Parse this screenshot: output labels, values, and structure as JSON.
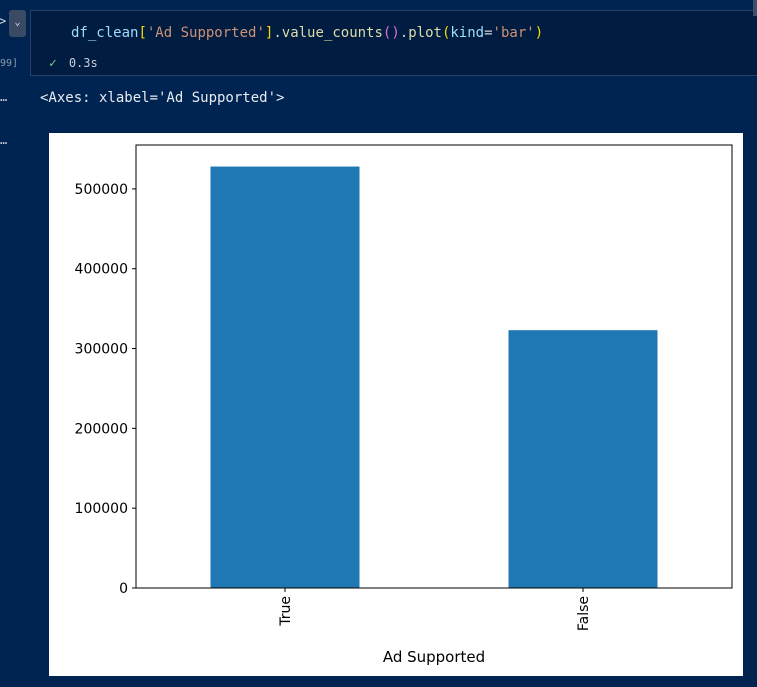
{
  "cell": {
    "exec_count": "99]",
    "code": {
      "var": "df_clean",
      "key": "'Ad Supported'",
      "method1": "value_counts",
      "method2": "plot",
      "param": "kind",
      "kind_value": "'bar'"
    },
    "status_check": "✓",
    "duration": "0.3s"
  },
  "output": {
    "ellipsis_1": "…",
    "ellipsis_2": "…",
    "repr": "<Axes: xlabel='Ad Supported'>"
  },
  "chart_data": {
    "type": "bar",
    "categories": [
      "True",
      "False"
    ],
    "values": [
      528000,
      323000
    ],
    "xlabel": "Ad Supported",
    "ylabel": "",
    "ylim": [
      0,
      555000
    ],
    "yticks": [
      0,
      100000,
      200000,
      300000,
      400000,
      500000
    ],
    "color": "#1f77b4",
    "grid": false
  }
}
